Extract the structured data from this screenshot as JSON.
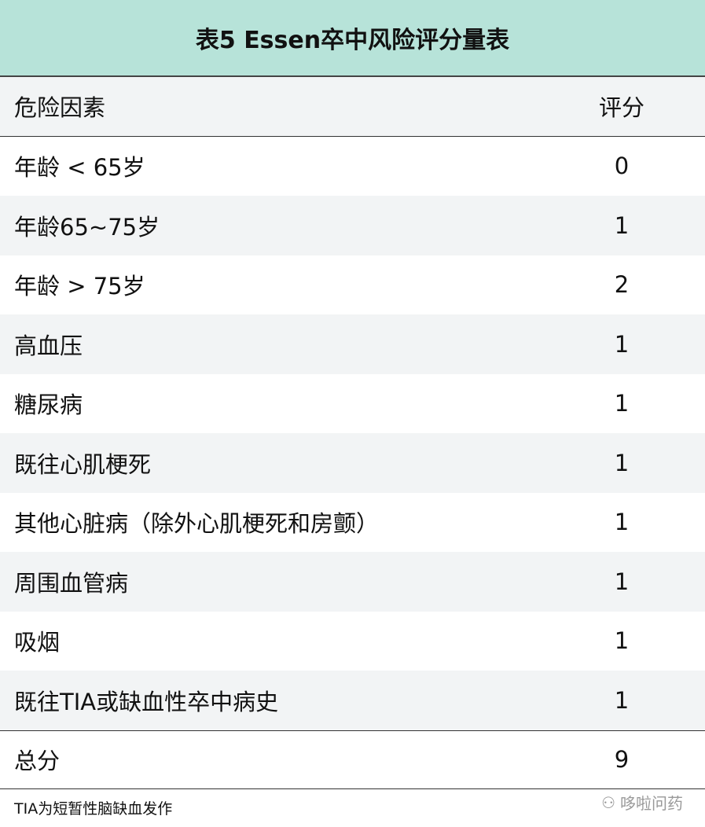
{
  "title": "表5 Essen卒中风险评分量表",
  "header": {
    "factor": "危险因素",
    "score": "评分"
  },
  "rows": [
    {
      "factor": "年龄 < 65岁",
      "score": "0"
    },
    {
      "factor": "年龄65~75岁",
      "score": "1"
    },
    {
      "factor": "年龄 > 75岁",
      "score": "2"
    },
    {
      "factor": "高血压",
      "score": "1"
    },
    {
      "factor": "糖尿病",
      "score": "1"
    },
    {
      "factor": "既往心肌梗死",
      "score": "1"
    },
    {
      "factor": "其他心脏病（除外心肌梗死和房颤）",
      "score": "1"
    },
    {
      "factor": "周围血管病",
      "score": "1"
    },
    {
      "factor": "吸烟",
      "score": "1"
    },
    {
      "factor": "既往TIA或缺血性卒中病史",
      "score": "1"
    }
  ],
  "total": {
    "label": "总分",
    "score": "9"
  },
  "footnote": "TIA为短暂性脑缺血发作",
  "watermark": "哆啦问药",
  "colors": {
    "title_bg": "#b7e3d9",
    "stripe": "#f2f4f5"
  }
}
